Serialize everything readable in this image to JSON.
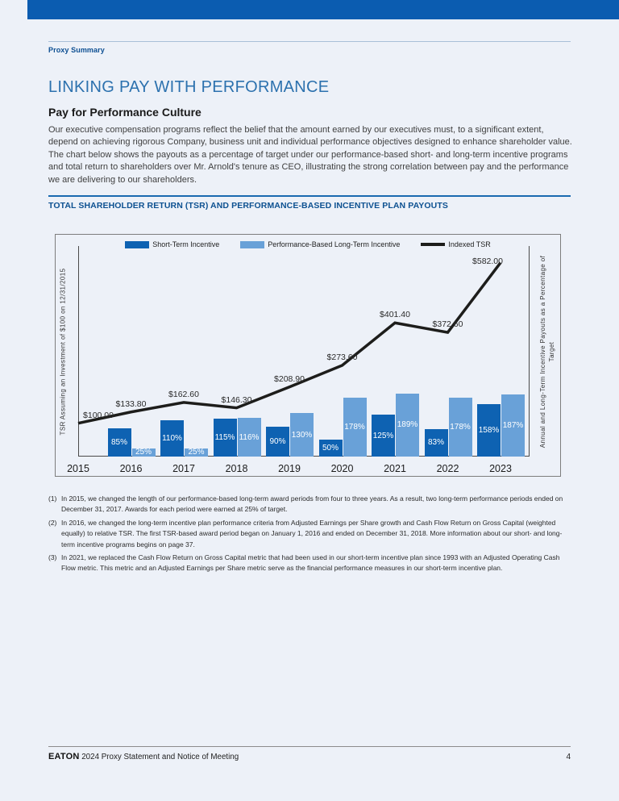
{
  "page": {
    "background": "#edf1f8",
    "accent_bar_color": "#0b5cb0",
    "eyebrow": "Proxy Summary",
    "title": "LINKING PAY WITH PERFORMANCE",
    "section_heading": "Pay for Performance Culture",
    "body_paragraph": "Our executive compensation programs reflect the belief that the amount earned by our executives must, to a significant extent, depend on achieving rigorous Company, business unit and individual performance objectives designed to enhance shareholder value. The chart below shows the payouts as a percentage of target under our performance-based short- and long-term incentive programs and total return to shareholders over Mr. Arnold's tenure as CEO, illustrating the strong correlation between pay and the performance we are delivering to our shareholders.",
    "chart_heading": "TOTAL SHAREHOLDER RETURN (TSR) AND PERFORMANCE-BASED INCENTIVE PLAN PAYOUTS",
    "footnotes": [
      {
        "marker": "(1)",
        "text": "In 2015, we changed the length of our performance-based long-term award periods from four to three years. As a result, two long-term performance periods ended on December 31, 2017. Awards for each period were earned at 25% of target."
      },
      {
        "marker": "(2)",
        "text": "In 2016, we changed the long-term incentive plan performance criteria from Adjusted Earnings per Share growth and Cash Flow Return on Gross Capital (weighted equally) to relative TSR. The first TSR-based award period began on January 1, 2016 and ended on December 31, 2018. More information about our short- and long-term incentive programs begins on page 37."
      },
      {
        "marker": "(3)",
        "text": "In 2021, we replaced the Cash Flow Return on Gross Capital metric that had been used in our short-term incentive plan since 1993 with an Adjusted Operating Cash Flow metric. This metric and an Adjusted Earnings per Share metric serve as the financial performance measures in our short-term incentive plan."
      }
    ],
    "footer": {
      "brand": "EATON",
      "title": "2024 Proxy Statement and Notice of Meeting",
      "page_number": "4"
    }
  },
  "chart_data": {
    "type": "bar",
    "subtype": "grouped-bars-with-line-overlay",
    "title": "TOTAL SHAREHOLDER RETURN (TSR) AND PERFORMANCE-BASED INCENTIVE PLAN PAYOUTS",
    "categories": [
      "2015",
      "2016",
      "2017",
      "2018",
      "2019",
      "2020",
      "2021",
      "2022",
      "2023"
    ],
    "series": [
      {
        "name": "Short-Term Incentive",
        "type": "bar",
        "color": "#0e62b2",
        "unit": "% of target",
        "values": [
          null,
          85,
          110,
          115,
          90,
          50,
          125,
          83,
          158
        ]
      },
      {
        "name": "Performance-Based Long-Term Incentive",
        "type": "bar",
        "color": "#69a1d8",
        "unit": "% of target",
        "values": [
          null,
          25,
          25,
          116,
          130,
          178,
          189,
          178,
          187
        ]
      },
      {
        "name": "Indexed TSR",
        "type": "line",
        "color": "#1d1d1b",
        "unit": "USD",
        "values": [
          100.0,
          133.8,
          162.6,
          146.3,
          208.9,
          273.6,
          401.4,
          372.6,
          582.0
        ],
        "point_labels": [
          "$100.00",
          "$133.80",
          "$162.60",
          "$146.30",
          "$208.90",
          "$273.60",
          "$401.40",
          "$372.60",
          "$582.00"
        ]
      }
    ],
    "ylabel_left": "TSR Assuming an Investment of $100 on 12/31/2015",
    "ylabel_right_line1": "Annual and Long-Term Incentive Payouts as a",
    "ylabel_right_line2": "Percentage of Target",
    "legend_position": "top",
    "value_range": [
      0,
      640
    ],
    "grid": false
  }
}
